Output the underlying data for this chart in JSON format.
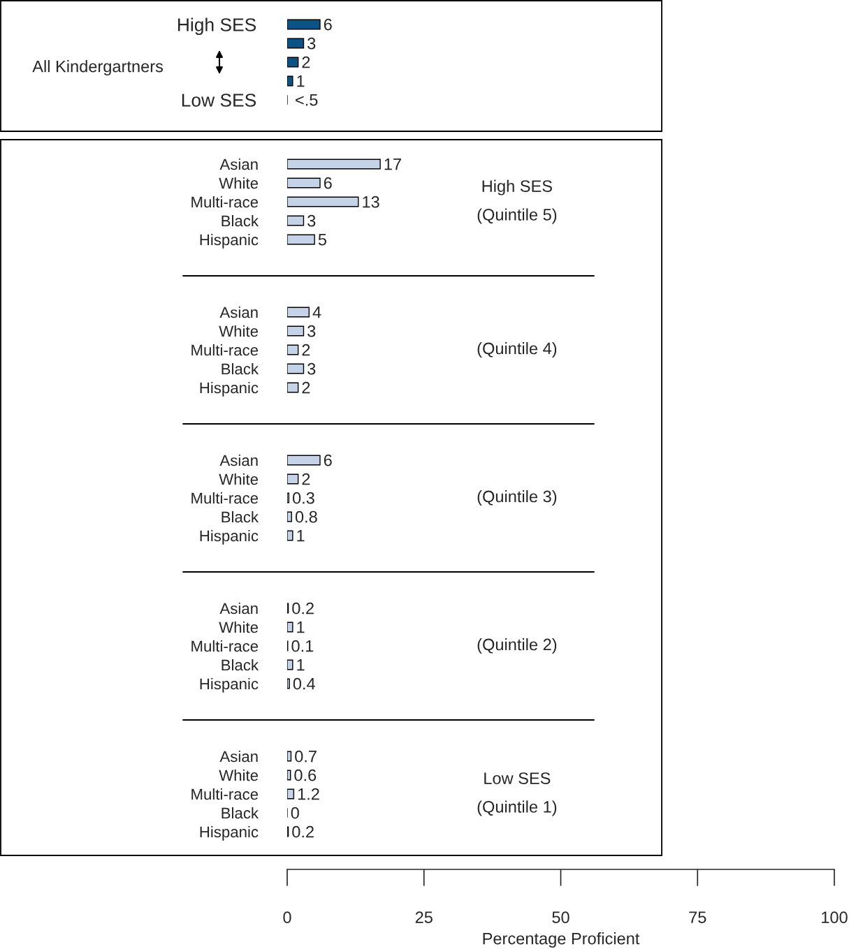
{
  "chart_data": [
    {
      "type": "bar",
      "orientation": "horizontal",
      "categories": [
        "High SES",
        null,
        null,
        null,
        "Low SES"
      ],
      "values": [
        6,
        3,
        2,
        1,
        null
      ],
      "value_labels": [
        "6",
        "3",
        "2",
        "1",
        "<.5"
      ],
      "color": "#0b5286",
      "xlim": [
        0,
        100
      ],
      "tick_labels": "y",
      "annotations": [
        "All Kindergartners"
      ]
    },
    {
      "type": "bar",
      "orientation": "horizontal",
      "categories": [
        "Asian",
        "White",
        "Multi-race",
        "Black",
        "Hispanic"
      ],
      "values": [
        17,
        6,
        13,
        3,
        5
      ],
      "data_labels": true,
      "color": "#c5d3e8",
      "xlim": [
        0,
        100
      ],
      "tick_labels": "y",
      "annotations": [
        "High SES\n(Quintile 5)"
      ]
    },
    {
      "type": "bar",
      "orientation": "horizontal",
      "categories": [
        "Asian",
        "White",
        "Multi-race",
        "Black",
        "Hispanic"
      ],
      "values": [
        4,
        3,
        2,
        3,
        2
      ],
      "data_labels": true,
      "color": "#c5d3e8",
      "xlim": [
        0,
        100
      ],
      "tick_labels": "y",
      "annotations": [
        "(Quintile 4)"
      ]
    },
    {
      "type": "bar",
      "orientation": "horizontal",
      "categories": [
        "Asian",
        "White",
        "Multi-race",
        "Black",
        "Hispanic"
      ],
      "values": [
        6,
        2,
        0.3,
        0.8,
        1
      ],
      "data_labels": true,
      "color": "#c5d3e8",
      "xlim": [
        0,
        100
      ],
      "tick_labels": "y",
      "annotations": [
        "(Quintile 3)"
      ]
    },
    {
      "type": "bar",
      "orientation": "horizontal",
      "categories": [
        "Asian",
        "White",
        "Multi-race",
        "Black",
        "Hispanic"
      ],
      "values": [
        0.2,
        1,
        0.1,
        1,
        0.4
      ],
      "data_labels": true,
      "color": "#c5d3e8",
      "xlim": [
        0,
        100
      ],
      "tick_labels": "y",
      "annotations": [
        "(Quintile 2)"
      ]
    },
    {
      "type": "bar",
      "orientation": "horizontal",
      "categories": [
        "Asian",
        "White",
        "Multi-race",
        "Black",
        "Hispanic"
      ],
      "values": [
        0.7,
        0.6,
        1.2,
        0,
        0.2
      ],
      "data_labels": true,
      "color": "#c5d3e8",
      "xlim": [
        0,
        100
      ],
      "xticks": [
        0,
        25,
        50,
        75,
        100
      ],
      "xlabel": "Percentage Proficient",
      "annotations": [
        "Low SES\n(Quintile 1)"
      ]
    }
  ]
}
